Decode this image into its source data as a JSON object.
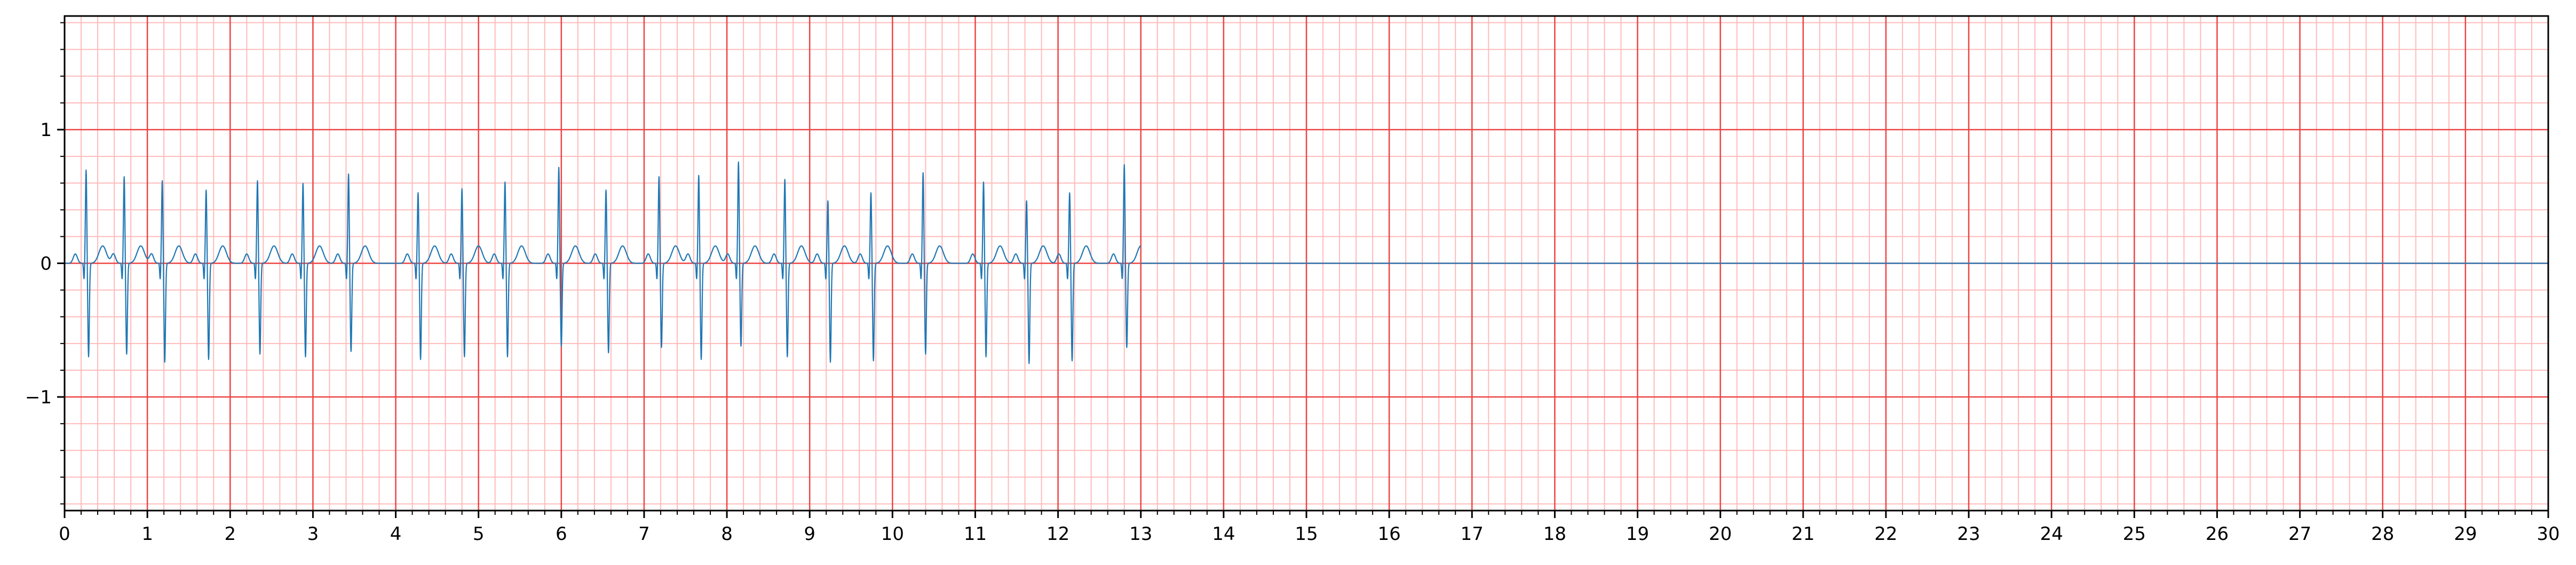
{
  "chart_data": {
    "type": "line",
    "title": "",
    "xlabel": "",
    "ylabel": "",
    "xlim": [
      0,
      30
    ],
    "ylim": [
      -1.85,
      1.85
    ],
    "x_ticks": [
      0,
      1,
      2,
      3,
      4,
      5,
      6,
      7,
      8,
      9,
      10,
      11,
      12,
      13,
      14,
      15,
      16,
      17,
      18,
      19,
      20,
      21,
      22,
      23,
      24,
      25,
      26,
      27,
      28,
      29,
      30
    ],
    "x_tick_labels": [
      "0",
      "1",
      "2",
      "3",
      "4",
      "5",
      "6",
      "7",
      "8",
      "9",
      "10",
      "11",
      "12",
      "13",
      "14",
      "15",
      "16",
      "17",
      "18",
      "19",
      "20",
      "21",
      "22",
      "23",
      "24",
      "25",
      "26",
      "27",
      "28",
      "29",
      "30"
    ],
    "y_ticks": [
      -1,
      0,
      1
    ],
    "y_tick_labels": [
      "−1",
      "0",
      "1"
    ],
    "grid": {
      "major": true,
      "minor": true,
      "major_color": "#ee4444",
      "minor_color": "#ffbbbb",
      "x_major_step": 1,
      "x_minor_step": 0.2,
      "y_major_step": 1,
      "y_minor_step": 0.2
    },
    "series": [
      {
        "color": "#1f77b4",
        "signal_end": 13.0,
        "flat_until": 30,
        "beats": [
          {
            "t": 0.26,
            "r": 0.7,
            "s": -0.7
          },
          {
            "t": 0.72,
            "r": 0.65,
            "s": -0.68
          },
          {
            "t": 1.18,
            "r": 0.62,
            "s": -0.74
          },
          {
            "t": 1.71,
            "r": 0.55,
            "s": -0.72
          },
          {
            "t": 2.33,
            "r": 0.62,
            "s": -0.68
          },
          {
            "t": 2.88,
            "r": 0.6,
            "s": -0.7
          },
          {
            "t": 3.43,
            "r": 0.67,
            "s": -0.66
          },
          {
            "t": 4.27,
            "r": 0.53,
            "s": -0.72
          },
          {
            "t": 4.8,
            "r": 0.56,
            "s": -0.7
          },
          {
            "t": 5.32,
            "r": 0.61,
            "s": -0.7
          },
          {
            "t": 5.97,
            "r": 0.72,
            "s": -0.62
          },
          {
            "t": 6.54,
            "r": 0.55,
            "s": -0.67
          },
          {
            "t": 7.18,
            "r": 0.65,
            "s": -0.63
          },
          {
            "t": 7.66,
            "r": 0.66,
            "s": -0.72
          },
          {
            "t": 8.14,
            "r": 0.76,
            "s": -0.62
          },
          {
            "t": 8.7,
            "r": 0.63,
            "s": -0.7
          },
          {
            "t": 9.22,
            "r": 0.47,
            "s": -0.74
          },
          {
            "t": 9.74,
            "r": 0.53,
            "s": -0.73
          },
          {
            "t": 10.37,
            "r": 0.68,
            "s": -0.68
          },
          {
            "t": 11.1,
            "r": 0.61,
            "s": -0.7
          },
          {
            "t": 11.62,
            "r": 0.47,
            "s": -0.75
          },
          {
            "t": 12.14,
            "r": 0.53,
            "s": -0.73
          },
          {
            "t": 12.8,
            "r": 0.74,
            "s": -0.63
          }
        ]
      }
    ]
  }
}
